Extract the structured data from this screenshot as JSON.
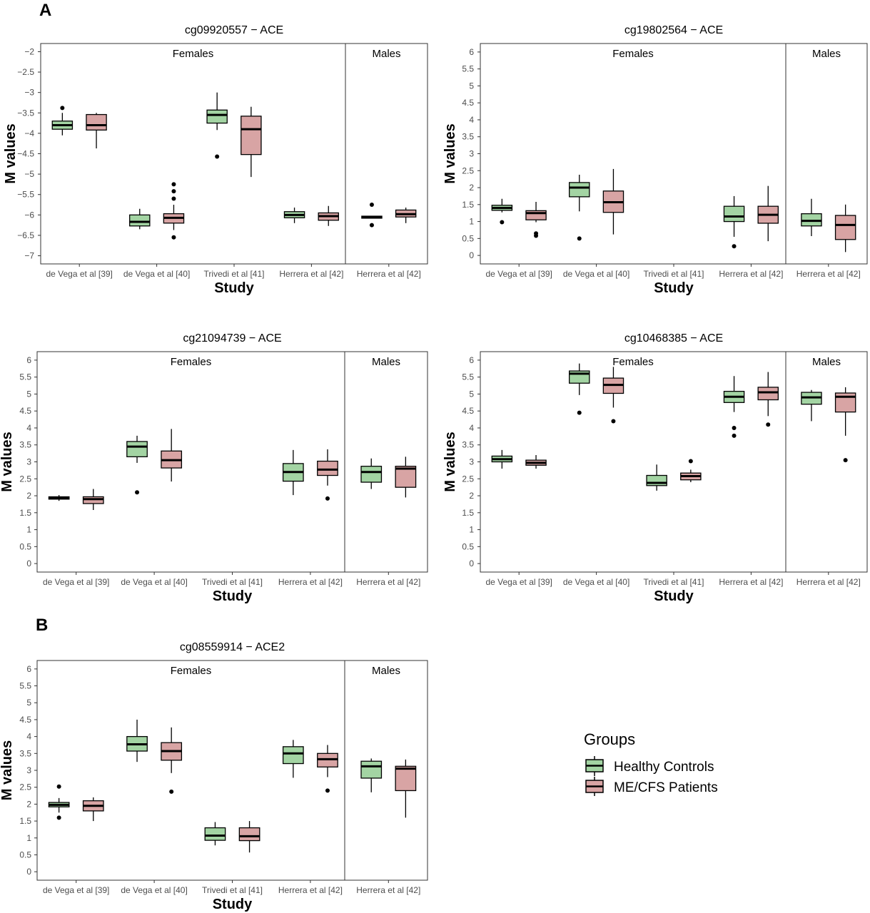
{
  "panel_labels": [
    "A",
    "B"
  ],
  "colors": {
    "control": "#a3d4a3",
    "patient": "#d8a4a4",
    "line": "#000000",
    "axis_text": "#4d4d4d"
  },
  "legend": {
    "title": "Groups",
    "items": [
      {
        "label": "Healthy Controls",
        "color": "#a3d4a3"
      },
      {
        "label": "ME/CFS Patients",
        "color": "#d8a4a4"
      }
    ]
  },
  "chart_data": [
    {
      "type": "boxplot",
      "title": "cg09920557 − ACE",
      "xlabel": "Study",
      "ylabel": "M values",
      "ylim": [
        -7.2,
        -1.8
      ],
      "yticks": [
        -7,
        -6.5,
        -6,
        -5.5,
        -5,
        -4.5,
        -4,
        -3.5,
        -3,
        -2.5,
        -2
      ],
      "strata": [
        "Females",
        "Males"
      ],
      "categories": [
        "de Vega et al [39]",
        "de Vega et al [40]",
        "Trivedi et al [41]",
        "Herrera et al [42]",
        "Herrera et al [42]"
      ],
      "groups": [
        {
          "name": "Healthy Controls",
          "boxes": [
            {
              "min": -4.05,
              "q1": -3.9,
              "median": -3.8,
              "q3": -3.7,
              "max": -3.5,
              "outliers": [
                -3.38
              ]
            },
            {
              "min": -6.35,
              "q1": -6.27,
              "median": -6.17,
              "q3": -6.0,
              "max": -5.85,
              "outliers": []
            },
            {
              "min": -3.92,
              "q1": -3.75,
              "median": -3.55,
              "q3": -3.43,
              "max": -3.0,
              "outliers": [
                -4.57
              ]
            },
            {
              "min": -6.2,
              "q1": -6.07,
              "median": -6.0,
              "q3": -5.92,
              "max": -5.82,
              "outliers": []
            },
            {
              "min": -6.08,
              "q1": -6.08,
              "median": -6.05,
              "q3": -6.03,
              "max": -6.03,
              "outliers": [
                -5.75,
                -6.25
              ]
            }
          ]
        },
        {
          "name": "ME/CFS Patients",
          "boxes": [
            {
              "min": -4.37,
              "q1": -3.92,
              "median": -3.8,
              "q3": -3.54,
              "max": -3.5,
              "outliers": []
            },
            {
              "min": -6.37,
              "q1": -6.2,
              "median": -6.07,
              "q3": -5.97,
              "max": -5.75,
              "outliers": [
                -6.55,
                -5.6,
                -5.42,
                -5.25
              ]
            },
            {
              "min": -5.07,
              "q1": -4.52,
              "median": -3.9,
              "q3": -3.58,
              "max": -3.35,
              "outliers": []
            },
            {
              "min": -6.27,
              "q1": -6.13,
              "median": -6.03,
              "q3": -5.95,
              "max": -5.78,
              "outliers": []
            },
            {
              "min": -6.2,
              "q1": -6.05,
              "median": -5.98,
              "q3": -5.88,
              "max": -5.82,
              "outliers": []
            }
          ]
        }
      ]
    },
    {
      "type": "boxplot",
      "title": "cg19802564 − ACE",
      "xlabel": "Study",
      "ylabel": "M values",
      "ylim": [
        -0.25,
        6.25
      ],
      "yticks": [
        0,
        0.5,
        1,
        1.5,
        2,
        2.5,
        3,
        3.5,
        4,
        4.5,
        5,
        5.5,
        6
      ],
      "strata": [
        "Females",
        "Males"
      ],
      "categories": [
        "de Vega et al [39]",
        "de Vega et al [40]",
        "Trivedi et al [41]",
        "Herrera et al [42]",
        "Herrera et al [42]"
      ],
      "groups": [
        {
          "name": "Healthy Controls",
          "boxes": [
            {
              "min": 1.27,
              "q1": 1.33,
              "median": 1.4,
              "q3": 1.48,
              "max": 1.67,
              "outliers": [
                0.98
              ]
            },
            {
              "min": 1.3,
              "q1": 1.73,
              "median": 2.0,
              "q3": 2.15,
              "max": 2.38,
              "outliers": [
                0.5
              ]
            },
            null,
            {
              "min": 0.55,
              "q1": 1.0,
              "median": 1.15,
              "q3": 1.45,
              "max": 1.75,
              "outliers": [
                0.27
              ]
            },
            {
              "min": 0.57,
              "q1": 0.87,
              "median": 1.02,
              "q3": 1.23,
              "max": 1.67,
              "outliers": []
            }
          ]
        },
        {
          "name": "ME/CFS Patients",
          "boxes": [
            {
              "min": 0.98,
              "q1": 1.05,
              "median": 1.25,
              "q3": 1.32,
              "max": 1.58,
              "outliers": [
                0.58,
                0.65
              ]
            },
            {
              "min": 0.62,
              "q1": 1.27,
              "median": 1.57,
              "q3": 1.9,
              "max": 2.55,
              "outliers": []
            },
            null,
            {
              "min": 0.42,
              "q1": 0.95,
              "median": 1.2,
              "q3": 1.45,
              "max": 2.05,
              "outliers": []
            },
            {
              "min": 0.1,
              "q1": 0.47,
              "median": 0.9,
              "q3": 1.18,
              "max": 1.5,
              "outliers": []
            }
          ]
        }
      ]
    },
    {
      "type": "boxplot",
      "title": "cg21094739 − ACE",
      "xlabel": "Study",
      "ylabel": "M values",
      "ylim": [
        -0.25,
        6.25
      ],
      "yticks": [
        0,
        0.5,
        1,
        1.5,
        2,
        2.5,
        3,
        3.5,
        4,
        4.5,
        5,
        5.5,
        6
      ],
      "strata": [
        "Females",
        "Males"
      ],
      "categories": [
        "de Vega et al [39]",
        "de Vega et al [40]",
        "Trivedi et al [41]",
        "Herrera et al [42]",
        "Herrera et al [42]"
      ],
      "groups": [
        {
          "name": "Healthy Controls",
          "boxes": [
            {
              "min": 1.85,
              "q1": 1.9,
              "median": 1.93,
              "q3": 1.97,
              "max": 2.02,
              "outliers": []
            },
            {
              "min": 2.97,
              "q1": 3.15,
              "median": 3.45,
              "q3": 3.6,
              "max": 3.77,
              "outliers": [
                2.1
              ]
            },
            null,
            {
              "min": 2.02,
              "q1": 2.43,
              "median": 2.7,
              "q3": 2.95,
              "max": 3.35,
              "outliers": []
            },
            {
              "min": 2.2,
              "q1": 2.4,
              "median": 2.7,
              "q3": 2.87,
              "max": 3.1,
              "outliers": []
            }
          ]
        },
        {
          "name": "ME/CFS Patients",
          "boxes": [
            {
              "min": 1.58,
              "q1": 1.77,
              "median": 1.9,
              "q3": 1.97,
              "max": 2.2,
              "outliers": []
            },
            {
              "min": 2.42,
              "q1": 2.82,
              "median": 3.05,
              "q3": 3.32,
              "max": 3.97,
              "outliers": []
            },
            null,
            {
              "min": 2.3,
              "q1": 2.6,
              "median": 2.77,
              "q3": 3.02,
              "max": 3.37,
              "outliers": [
                1.92
              ]
            },
            {
              "min": 1.95,
              "q1": 2.25,
              "median": 2.8,
              "q3": 2.87,
              "max": 3.15,
              "outliers": []
            }
          ]
        }
      ]
    },
    {
      "type": "boxplot",
      "title": "cg10468385 − ACE",
      "xlabel": "Study",
      "ylabel": "M values",
      "ylim": [
        -0.25,
        6.25
      ],
      "yticks": [
        0,
        0.5,
        1,
        1.5,
        2,
        2.5,
        3,
        3.5,
        4,
        4.5,
        5,
        5.5,
        6
      ],
      "strata": [
        "Females",
        "Males"
      ],
      "categories": [
        "de Vega et al [39]",
        "de Vega et al [40]",
        "Trivedi et al [41]",
        "Herrera et al [42]",
        "Herrera et al [42]"
      ],
      "groups": [
        {
          "name": "Healthy Controls",
          "boxes": [
            {
              "min": 2.8,
              "q1": 3.0,
              "median": 3.08,
              "q3": 3.17,
              "max": 3.35,
              "outliers": []
            },
            {
              "min": 4.97,
              "q1": 5.32,
              "median": 5.6,
              "q3": 5.68,
              "max": 5.9,
              "outliers": [
                4.45
              ]
            },
            {
              "min": 2.15,
              "q1": 2.3,
              "median": 2.38,
              "q3": 2.6,
              "max": 2.92,
              "outliers": []
            },
            {
              "min": 4.47,
              "q1": 4.75,
              "median": 4.92,
              "q3": 5.08,
              "max": 5.53,
              "outliers": [
                4.0,
                3.77
              ]
            },
            {
              "min": 4.2,
              "q1": 4.7,
              "median": 4.9,
              "q3": 5.05,
              "max": 5.12,
              "outliers": []
            }
          ]
        },
        {
          "name": "ME/CFS Patients",
          "boxes": [
            {
              "min": 2.8,
              "q1": 2.9,
              "median": 2.97,
              "q3": 3.05,
              "max": 3.2,
              "outliers": []
            },
            {
              "min": 4.6,
              "q1": 5.02,
              "median": 5.27,
              "q3": 5.47,
              "max": 5.8,
              "outliers": [
                4.2
              ]
            },
            {
              "min": 2.4,
              "q1": 2.47,
              "median": 2.58,
              "q3": 2.67,
              "max": 2.77,
              "outliers": [
                3.02
              ]
            },
            {
              "min": 4.35,
              "q1": 4.83,
              "median": 5.05,
              "q3": 5.2,
              "max": 5.65,
              "outliers": [
                4.1
              ]
            },
            {
              "min": 3.77,
              "q1": 4.47,
              "median": 4.92,
              "q3": 5.03,
              "max": 5.2,
              "outliers": [
                3.05
              ]
            }
          ]
        }
      ]
    },
    {
      "type": "boxplot",
      "title": "cg08559914 − ACE2",
      "xlabel": "Study",
      "ylabel": "M values",
      "ylim": [
        -0.25,
        6.25
      ],
      "yticks": [
        0,
        0.5,
        1,
        1.5,
        2,
        2.5,
        3,
        3.5,
        4,
        4.5,
        5,
        5.5,
        6
      ],
      "strata": [
        "Females",
        "Males"
      ],
      "categories": [
        "de Vega et al [39]",
        "de Vega et al [40]",
        "Trivedi et al [41]",
        "Herrera et al [42]",
        "Herrera et al [42]"
      ],
      "groups": [
        {
          "name": "Healthy Controls",
          "boxes": [
            {
              "min": 1.75,
              "q1": 1.92,
              "median": 1.98,
              "q3": 2.05,
              "max": 2.18,
              "outliers": [
                2.52,
                1.6
              ]
            },
            {
              "min": 3.25,
              "q1": 3.57,
              "median": 3.77,
              "q3": 4.0,
              "max": 4.5,
              "outliers": []
            },
            {
              "min": 0.78,
              "q1": 0.93,
              "median": 1.07,
              "q3": 1.3,
              "max": 1.47,
              "outliers": []
            },
            {
              "min": 2.78,
              "q1": 3.2,
              "median": 3.5,
              "q3": 3.7,
              "max": 3.9,
              "outliers": []
            },
            {
              "min": 2.35,
              "q1": 2.77,
              "median": 3.12,
              "q3": 3.27,
              "max": 3.35,
              "outliers": []
            }
          ]
        },
        {
          "name": "ME/CFS Patients",
          "boxes": [
            {
              "min": 1.5,
              "q1": 1.8,
              "median": 1.95,
              "q3": 2.1,
              "max": 2.2,
              "outliers": []
            },
            {
              "min": 2.92,
              "q1": 3.3,
              "median": 3.57,
              "q3": 3.82,
              "max": 4.27,
              "outliers": [
                2.37
              ]
            },
            {
              "min": 0.57,
              "q1": 0.92,
              "median": 1.05,
              "q3": 1.3,
              "max": 1.5,
              "outliers": []
            },
            {
              "min": 2.8,
              "q1": 3.1,
              "median": 3.33,
              "q3": 3.5,
              "max": 3.75,
              "outliers": [
                2.4
              ]
            },
            {
              "min": 1.6,
              "q1": 2.4,
              "median": 3.05,
              "q3": 3.12,
              "max": 3.32,
              "outliers": []
            }
          ]
        }
      ]
    }
  ]
}
